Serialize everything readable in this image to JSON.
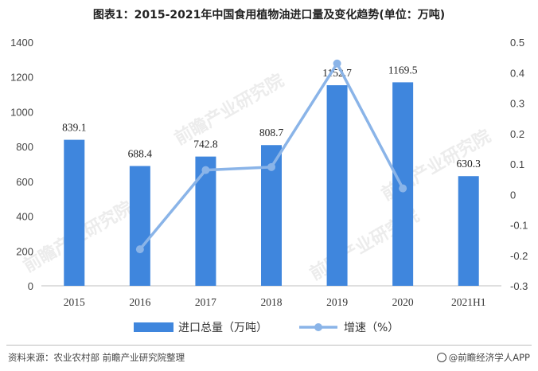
{
  "title": "图表1：2015-2021年中国食用植物油进口量及变化趋势(单位：万吨)",
  "source": "资料来源：农业农村部 前瞻产业研究院整理",
  "brand": "@前瞻经济学人APP",
  "watermark": "前瞻产业研究院",
  "colors": {
    "bar": "#3f86dd",
    "line": "#8ab4e8"
  },
  "chart_data": {
    "type": "bar",
    "categories": [
      "2015",
      "2016",
      "2017",
      "2018",
      "2019",
      "2020",
      "2021H1"
    ],
    "series": [
      {
        "name": "进口总量（万吨）",
        "type": "bar",
        "axis": "left",
        "values": [
          839.1,
          688.4,
          742.8,
          808.7,
          1152.7,
          1169.5,
          630.3
        ]
      },
      {
        "name": "增速（%）",
        "type": "line",
        "axis": "right",
        "values": [
          null,
          -0.18,
          0.08,
          0.09,
          0.43,
          0.02,
          null
        ]
      }
    ],
    "data_labels": [
      "839.1",
      "688.4",
      "742.8",
      "808.7",
      "1152.7",
      "1169.5",
      "630.3"
    ],
    "ylim_left": [
      0,
      1400
    ],
    "yticks_left": [
      "0",
      "200",
      "400",
      "600",
      "800",
      "1000",
      "1200",
      "1400"
    ],
    "ylim_right": [
      -0.3,
      0.5
    ],
    "yticks_right": [
      "-0.3",
      "-0.2",
      "-0.1",
      "0",
      "0.1",
      "0.2",
      "0.3",
      "0.4",
      "0.5"
    ],
    "grid": false,
    "legend_position": "bottom"
  }
}
